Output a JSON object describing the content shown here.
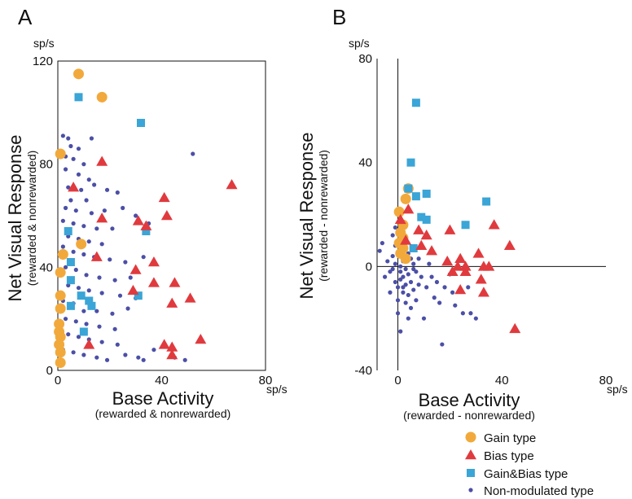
{
  "colors": {
    "gain": "#f2a93b",
    "bias": "#e03a3e",
    "gainbias": "#3aa5d6",
    "nonmod": "#4b4fa6",
    "axis": "#111111"
  },
  "legend": {
    "items": [
      {
        "label": "Gain type",
        "marker": "circle-large",
        "color_key": "gain"
      },
      {
        "label": "Bias type",
        "marker": "triangle",
        "color_key": "bias"
      },
      {
        "label": "Gain&Bias type",
        "marker": "square",
        "color_key": "gainbias"
      },
      {
        "label": "Non-modulated type",
        "marker": "circle-small",
        "color_key": "nonmod"
      }
    ]
  },
  "chart_data": [
    {
      "panel": "A",
      "type": "scatter",
      "title": "",
      "ylabel": "Net Visual Response",
      "ylabel_sub": "(rewarded & nonrewarded)",
      "xlabel": "Base Activity",
      "xlabel_sub": "(rewarded & nonrewarded)",
      "y_unit": "sp/s",
      "x_unit": "sp/s",
      "xlim": [
        0,
        80
      ],
      "ylim": [
        0,
        120
      ],
      "xticks": [
        "0",
        "40",
        "80"
      ],
      "yticks": [
        "0",
        "40",
        "80",
        "120"
      ],
      "xtick_values": [
        0,
        40,
        80
      ],
      "ytick_values": [
        0,
        40,
        80,
        120
      ],
      "grid": false,
      "series": [
        {
          "name": "Gain type",
          "color_key": "gain",
          "marker": "circle-large",
          "points": [
            [
              8,
              115
            ],
            [
              17,
              106
            ],
            [
              1,
              84
            ],
            [
              9,
              49
            ],
            [
              2,
              45
            ],
            [
              1,
              38
            ],
            [
              1,
              29
            ],
            [
              1,
              24
            ],
            [
              0.5,
              18
            ],
            [
              0.5,
              15
            ],
            [
              1,
              13
            ],
            [
              0.5,
              10
            ],
            [
              1,
              7
            ],
            [
              1,
              3
            ]
          ]
        },
        {
          "name": "Bias type",
          "color_key": "bias",
          "marker": "triangle",
          "points": [
            [
              17,
              81
            ],
            [
              6,
              71
            ],
            [
              67,
              72
            ],
            [
              41,
              67
            ],
            [
              42,
              60
            ],
            [
              17,
              59
            ],
            [
              31,
              58
            ],
            [
              34,
              56
            ],
            [
              15,
              44
            ],
            [
              37,
              42
            ],
            [
              30,
              39
            ],
            [
              29,
              31
            ],
            [
              45,
              34
            ],
            [
              37,
              34
            ],
            [
              51,
              28
            ],
            [
              44,
              26
            ],
            [
              55,
              12
            ],
            [
              41,
              10
            ],
            [
              44,
              9
            ],
            [
              44,
              6
            ],
            [
              12,
              10
            ]
          ]
        },
        {
          "name": "Gain&Bias type",
          "color_key": "gainbias",
          "marker": "square",
          "points": [
            [
              8,
              106
            ],
            [
              32,
              96
            ],
            [
              4,
              54
            ],
            [
              34,
              54
            ],
            [
              5,
              42
            ],
            [
              5,
              35
            ],
            [
              9,
              29
            ],
            [
              12,
              27
            ],
            [
              5,
              25
            ],
            [
              13,
              25
            ],
            [
              31,
              29
            ],
            [
              10,
              15
            ]
          ]
        },
        {
          "name": "Non-modulated type",
          "color_key": "nonmod",
          "marker": "circle-small",
          "points": [
            [
              2,
              91
            ],
            [
              4,
              90
            ],
            [
              13,
              90
            ],
            [
              5,
              87
            ],
            [
              8,
              86
            ],
            [
              52,
              84
            ],
            [
              3,
              83
            ],
            [
              6,
              82
            ],
            [
              10,
              80
            ],
            [
              3,
              78
            ],
            [
              8,
              76
            ],
            [
              12,
              74
            ],
            [
              4,
              71
            ],
            [
              9,
              70
            ],
            [
              14,
              72
            ],
            [
              19,
              70
            ],
            [
              23,
              69
            ],
            [
              5,
              66
            ],
            [
              11,
              66
            ],
            [
              3,
              63
            ],
            [
              7,
              62
            ],
            [
              13,
              61
            ],
            [
              18,
              62
            ],
            [
              25,
              63
            ],
            [
              30,
              60
            ],
            [
              2,
              58
            ],
            [
              6,
              57
            ],
            [
              10,
              56
            ],
            [
              15,
              55
            ],
            [
              21,
              55
            ],
            [
              35,
              57
            ],
            [
              4,
              52
            ],
            [
              8,
              51
            ],
            [
              12,
              50
            ],
            [
              17,
              49
            ],
            [
              2,
              48
            ],
            [
              6,
              46
            ],
            [
              10,
              45
            ],
            [
              14,
              44
            ],
            [
              20,
              43
            ],
            [
              26,
              42
            ],
            [
              33,
              44
            ],
            [
              3,
              40
            ],
            [
              7,
              39
            ],
            [
              11,
              37
            ],
            [
              16,
              36
            ],
            [
              22,
              35
            ],
            [
              28,
              36
            ],
            [
              4,
              33
            ],
            [
              8,
              32
            ],
            [
              12,
              31
            ],
            [
              17,
              30
            ],
            [
              24,
              29
            ],
            [
              30,
              28
            ],
            [
              2,
              27
            ],
            [
              6,
              26
            ],
            [
              10,
              23
            ],
            [
              15,
              23
            ],
            [
              21,
              22
            ],
            [
              27,
              24
            ],
            [
              3,
              20
            ],
            [
              7,
              19
            ],
            [
              11,
              18
            ],
            [
              16,
              17
            ],
            [
              22,
              16
            ],
            [
              4,
              14
            ],
            [
              8,
              13
            ],
            [
              12,
              12
            ],
            [
              17,
              11
            ],
            [
              23,
              10
            ],
            [
              2,
              8
            ],
            [
              6,
              7
            ],
            [
              10,
              6
            ],
            [
              15,
              5
            ],
            [
              19,
              4
            ],
            [
              26,
              6
            ],
            [
              31,
              5
            ],
            [
              33,
              4
            ],
            [
              37,
              8
            ],
            [
              45,
              5
            ],
            [
              49,
              4
            ]
          ]
        }
      ]
    },
    {
      "panel": "B",
      "type": "scatter",
      "title": "",
      "ylabel": "Net Visual Response",
      "ylabel_sub": "(rewarded - nonrewarded)",
      "xlabel": "Base Activity",
      "xlabel_sub": "(rewarded - nonrewarded)",
      "y_unit": "sp/s",
      "x_unit": "sp/s",
      "xlim": [
        -8,
        80
      ],
      "ylim": [
        -40,
        80
      ],
      "xticks": [
        "0",
        "40",
        "80"
      ],
      "yticks": [
        "-40",
        "0",
        "40",
        "80"
      ],
      "xtick_values": [
        0,
        40,
        80
      ],
      "ytick_values": [
        -40,
        0,
        40,
        80
      ],
      "grid": false,
      "series": [
        {
          "name": "Gain type",
          "color_key": "gain",
          "marker": "circle-large",
          "points": [
            [
              4,
              30
            ],
            [
              3,
              26
            ],
            [
              0.5,
              21
            ],
            [
              2,
              16
            ],
            [
              1,
              13
            ],
            [
              2,
              11
            ],
            [
              0.5,
              9
            ],
            [
              2,
              7
            ],
            [
              1,
              5
            ],
            [
              3,
              3
            ]
          ]
        },
        {
          "name": "Bias type",
          "color_key": "bias",
          "marker": "triangle",
          "points": [
            [
              4,
              22
            ],
            [
              1,
              18
            ],
            [
              37,
              16
            ],
            [
              8,
              14
            ],
            [
              20,
              14
            ],
            [
              11,
              12
            ],
            [
              3,
              10
            ],
            [
              9,
              8
            ],
            [
              13,
              6
            ],
            [
              31,
              5
            ],
            [
              43,
              8
            ],
            [
              24,
              3
            ],
            [
              19,
              2
            ],
            [
              23,
              0
            ],
            [
              26,
              0
            ],
            [
              33,
              0
            ],
            [
              35,
              0
            ],
            [
              21,
              -2
            ],
            [
              26,
              -2
            ],
            [
              32,
              -5
            ],
            [
              24,
              -9
            ],
            [
              33,
              -10
            ],
            [
              45,
              -24
            ]
          ]
        },
        {
          "name": "Gain&Bias type",
          "color_key": "gainbias",
          "marker": "square",
          "points": [
            [
              7,
              63
            ],
            [
              5,
              40
            ],
            [
              4,
              30
            ],
            [
              7,
              27
            ],
            [
              11,
              28
            ],
            [
              9,
              19
            ],
            [
              11,
              18
            ],
            [
              26,
              16
            ],
            [
              34,
              25
            ],
            [
              6,
              7
            ]
          ]
        },
        {
          "name": "Non-modulated type",
          "color_key": "nonmod",
          "marker": "circle-small",
          "points": [
            [
              -7,
              6
            ],
            [
              -6,
              9
            ],
            [
              -4,
              2
            ],
            [
              -3,
              -2
            ],
            [
              -5,
              -4
            ],
            [
              -2,
              12
            ],
            [
              -2,
              4
            ],
            [
              -1,
              -6
            ],
            [
              -3,
              -10
            ],
            [
              -1,
              15
            ],
            [
              0,
              -13
            ],
            [
              0,
              -18
            ],
            [
              1,
              -25
            ],
            [
              2,
              -4
            ],
            [
              2,
              -8
            ],
            [
              3,
              -14
            ],
            [
              3,
              3
            ],
            [
              4,
              -3
            ],
            [
              4,
              -11
            ],
            [
              5,
              -6
            ],
            [
              5,
              -16
            ],
            [
              6,
              1
            ],
            [
              6,
              -9
            ],
            [
              7,
              -2
            ],
            [
              7,
              -13
            ],
            [
              8,
              3
            ],
            [
              8,
              -7
            ],
            [
              9,
              -4
            ],
            [
              10,
              -20
            ],
            [
              11,
              -8
            ],
            [
              12,
              1
            ],
            [
              13,
              -4
            ],
            [
              14,
              -12
            ],
            [
              15,
              -6
            ],
            [
              16,
              -14
            ],
            [
              17,
              -30
            ],
            [
              18,
              -8
            ],
            [
              20,
              -3
            ],
            [
              21,
              -10
            ],
            [
              22,
              -15
            ],
            [
              25,
              -18
            ],
            [
              27,
              -8
            ],
            [
              28,
              -18
            ],
            [
              30,
              -20
            ],
            [
              -1,
              8
            ],
            [
              1,
              0
            ],
            [
              1,
              -2
            ],
            [
              2,
              2
            ],
            [
              3,
              -1
            ],
            [
              0,
              5
            ],
            [
              -2,
              -1
            ],
            [
              4,
              5
            ],
            [
              5,
              3
            ],
            [
              6,
              -1
            ],
            [
              1,
              -5
            ],
            [
              2,
              -10
            ],
            [
              3,
              -7
            ],
            [
              -1,
              1
            ],
            [
              0,
              -8
            ],
            [
              4,
              -20
            ]
          ]
        }
      ]
    }
  ]
}
